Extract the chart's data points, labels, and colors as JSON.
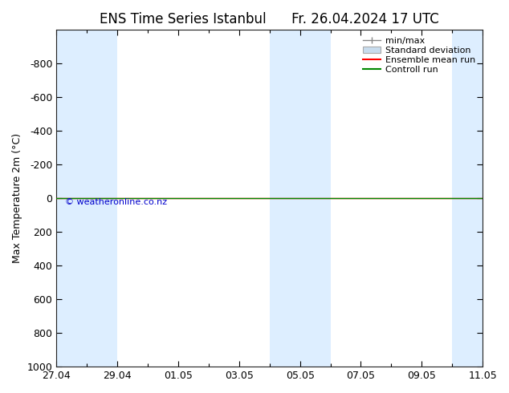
{
  "title": "ENS Time Series Istanbul",
  "title2": "Fr. 26.04.2024 17 UTC",
  "ylabel": "Max Temperature 2m (°C)",
  "ylim_bottom": 1000,
  "ylim_top": -1000,
  "yticks": [
    -800,
    -600,
    -400,
    -200,
    0,
    200,
    400,
    600,
    800,
    1000
  ],
  "xtick_labels": [
    "27.04",
    "29.04",
    "01.05",
    "03.05",
    "05.05",
    "07.05",
    "09.05",
    "11.05"
  ],
  "xtick_positions": [
    0,
    2,
    4,
    6,
    8,
    10,
    12,
    14
  ],
  "x_total_days": 14,
  "shaded_bands": [
    [
      0,
      1
    ],
    [
      1,
      2
    ],
    [
      7,
      8
    ],
    [
      8,
      9
    ],
    [
      13,
      14
    ]
  ],
  "shade_color": "#ddeeff",
  "green_line_y": 0,
  "green_line_color": "#008800",
  "red_line_y": 0,
  "red_line_color": "#ff0000",
  "background_color": "#ffffff",
  "legend_entries": [
    "min/max",
    "Standard deviation",
    "Ensemble mean run",
    "Controll run"
  ],
  "legend_line_color": "#888888",
  "legend_std_color": "#c8dcee",
  "legend_ens_color": "#ff0000",
  "legend_ctrl_color": "#008800",
  "watermark": "© weatheronline.co.nz",
  "watermark_color": "#0000cc",
  "title_fontsize": 12,
  "axis_fontsize": 9,
  "tick_fontsize": 9
}
